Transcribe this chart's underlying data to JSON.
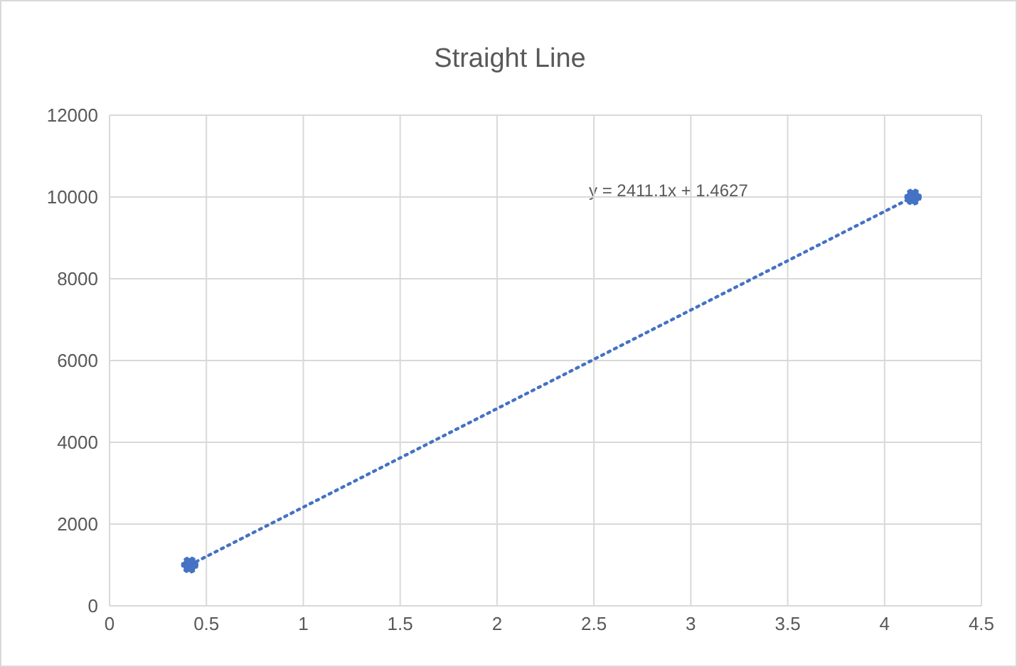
{
  "chart_data": {
    "type": "line",
    "title": "Straight Line",
    "x": [
      0.414,
      4.147
    ],
    "xlim": [
      0,
      4.5
    ],
    "xticks": [
      0,
      0.5,
      1,
      1.5,
      2,
      2.5,
      3,
      3.5,
      4,
      4.5
    ],
    "ylim": [
      0,
      12000
    ],
    "yticks": [
      0,
      2000,
      4000,
      6000,
      8000,
      10000,
      12000
    ],
    "grid": true,
    "marker": "circle",
    "line_style": "dotted",
    "annotations": [
      "y = 2411.1x + 1.4627"
    ],
    "series": [
      {
        "color": "#4472c4",
        "values": [
          1000,
          10000
        ]
      }
    ]
  }
}
